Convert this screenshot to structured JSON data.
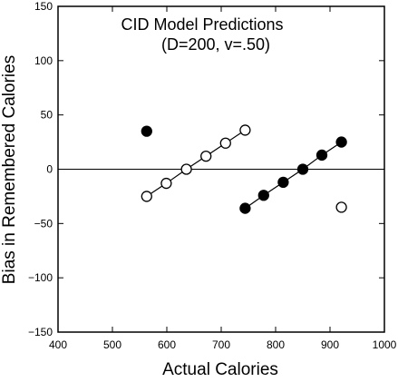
{
  "chart_data": {
    "type": "scatter",
    "title": "CID Model Predictions",
    "subtitle": "(D=200, v=.50)",
    "xlabel": "Actual Calories",
    "ylabel": "Bias in Remembered Calories",
    "xlim": [
      400,
      1000
    ],
    "ylim": [
      -150,
      150
    ],
    "xticks": [
      400,
      500,
      600,
      700,
      800,
      900,
      1000
    ],
    "yticks": [
      -150,
      -100,
      -50,
      0,
      50,
      100,
      150
    ],
    "grid": false,
    "reference_line_y": 0,
    "series": [
      {
        "marker": "open-circle",
        "line_segments": [
          [
            0,
            6
          ],
          [
            6,
            7
          ]
        ],
        "x": [
          563,
          599,
          636,
          672,
          708,
          744,
          921
        ],
        "y": [
          -25,
          -13,
          0,
          12,
          24,
          36,
          -35
        ]
      },
      {
        "marker": "filled-circle",
        "line_segments": [
          [
            0,
            1
          ],
          [
            1,
            7
          ]
        ],
        "x": [
          563,
          744,
          778,
          814,
          850,
          885,
          921
        ],
        "y": [
          35,
          -36,
          -24,
          -12,
          0,
          13,
          25
        ]
      }
    ]
  }
}
